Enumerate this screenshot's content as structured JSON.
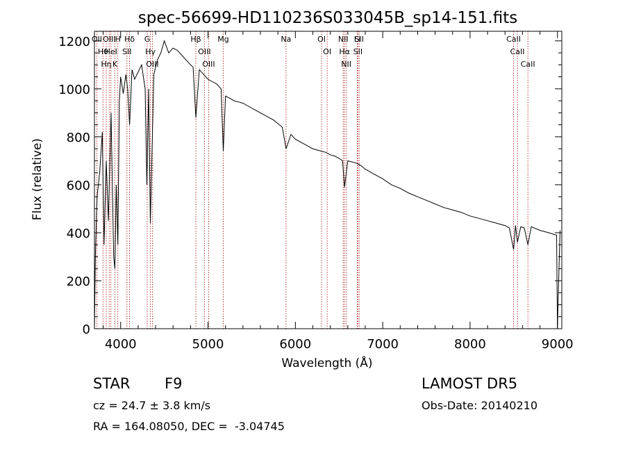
{
  "chart_data": {
    "type": "line",
    "title": "spec-56699-HD110236S033045B_sp14-151.fits",
    "xlabel": "Wavelength (Å)",
    "ylabel": "Flux (relative)",
    "xlim": [
      3700,
      9050
    ],
    "ylim": [
      0,
      1240
    ],
    "xticks": [
      4000,
      5000,
      6000,
      7000,
      8000,
      9000
    ],
    "yticks": [
      0,
      200,
      400,
      600,
      800,
      1000,
      1200
    ],
    "grid": false,
    "series": [
      {
        "x": [
          3700,
          3710,
          3730,
          3760,
          3790,
          3810,
          3835,
          3860,
          3890,
          3920,
          3934,
          3950,
          3968,
          3985,
          4000,
          4030,
          4060,
          4080,
          4102,
          4130,
          4160,
          4200,
          4240,
          4280,
          4300,
          4320,
          4340,
          4380,
          4420,
          4460,
          4500,
          4550,
          4600,
          4650,
          4700,
          4750,
          4800,
          4830,
          4861,
          4900,
          4950,
          5000,
          5050,
          5100,
          5150,
          5175,
          5200,
          5250,
          5300,
          5350,
          5400,
          5450,
          5500,
          5550,
          5600,
          5650,
          5700,
          5750,
          5800,
          5850,
          5893,
          5950,
          6000,
          6050,
          6100,
          6150,
          6200,
          6250,
          6300,
          6350,
          6400,
          6450,
          6500,
          6540,
          6563,
          6600,
          6650,
          6700,
          6750,
          6800,
          6900,
          7000,
          7100,
          7200,
          7300,
          7400,
          7500,
          7600,
          7700,
          7800,
          7900,
          8000,
          8100,
          8200,
          8300,
          8400,
          8450,
          8498,
          8520,
          8542,
          8580,
          8620,
          8662,
          8700,
          8800,
          8900,
          8990,
          9000,
          9010,
          9030
        ],
        "y": [
          0,
          300,
          550,
          650,
          820,
          350,
          700,
          450,
          900,
          300,
          250,
          600,
          350,
          950,
          1050,
          980,
          1060,
          1000,
          850,
          1080,
          1040,
          1070,
          1100,
          1000,
          600,
          1000,
          440,
          1060,
          1120,
          1150,
          1200,
          1150,
          1170,
          1160,
          1140,
          1120,
          1100,
          1090,
          880,
          1080,
          1060,
          1040,
          1030,
          1020,
          1000,
          740,
          970,
          960,
          950,
          945,
          940,
          930,
          920,
          910,
          900,
          890,
          880,
          870,
          855,
          840,
          750,
          810,
          790,
          780,
          770,
          760,
          750,
          745,
          740,
          735,
          725,
          720,
          710,
          700,
          590,
          700,
          695,
          690,
          680,
          665,
          645,
          625,
          600,
          585,
          565,
          550,
          535,
          520,
          505,
          495,
          485,
          470,
          460,
          450,
          440,
          430,
          420,
          330,
          430,
          360,
          425,
          420,
          350,
          425,
          410,
          400,
          390,
          0,
          150,
          410
        ]
      }
    ],
    "line_markers": [
      {
        "wl": 3727,
        "label": "OII"
      },
      {
        "wl": 3798,
        "label": "Hθ"
      },
      {
        "wl": 3835,
        "label": "Hη"
      },
      {
        "wl": 3869,
        "label": "OIII"
      },
      {
        "wl": 3889,
        "label": "HeI"
      },
      {
        "wl": 3934,
        "label": "K"
      },
      {
        "wl": 3968,
        "label": "H"
      },
      {
        "wl": 4072,
        "label": "SII"
      },
      {
        "wl": 4102,
        "label": "Hδ"
      },
      {
        "wl": 4304,
        "label": "G"
      },
      {
        "wl": 4340,
        "label": "Hγ"
      },
      {
        "wl": 4363,
        "label": "OIII"
      },
      {
        "wl": 4861,
        "label": "Hβ"
      },
      {
        "wl": 4959,
        "label": "OIII"
      },
      {
        "wl": 5007,
        "label": "OIII"
      },
      {
        "wl": 5175,
        "label": "Mg"
      },
      {
        "wl": 5893,
        "label": "Na"
      },
      {
        "wl": 6300,
        "label": "OI"
      },
      {
        "wl": 6364,
        "label": "OI"
      },
      {
        "wl": 6548,
        "label": "NII"
      },
      {
        "wl": 6563,
        "label": "Hα"
      },
      {
        "wl": 6583,
        "label": "NII"
      },
      {
        "wl": 6708,
        "label": "Li"
      },
      {
        "wl": 6716,
        "label": "SII"
      },
      {
        "wl": 6731,
        "label": "SII"
      },
      {
        "wl": 8498,
        "label": "CaII"
      },
      {
        "wl": 8542,
        "label": "CaII"
      },
      {
        "wl": 8662,
        "label": "CaII"
      }
    ]
  },
  "info": {
    "object_class": "STAR",
    "subclass": "F9",
    "survey": "LAMOST DR5",
    "velocity": "cz = 24.7 ± 3.8 km/s",
    "obs_date": "Obs-Date: 20140210",
    "coords": "RA = 164.08050, DEC =  -3.04745"
  }
}
